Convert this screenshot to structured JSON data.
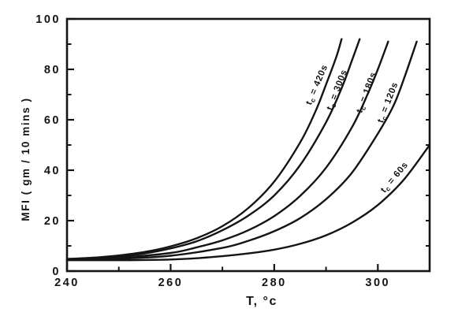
{
  "figure": {
    "background": "#ffffff",
    "ink_color": "#141414"
  },
  "chart_data": {
    "type": "line",
    "title": "",
    "xlabel": "T, °c",
    "ylabel": "MFI ( gm / 10 mins )",
    "xlim": [
      240,
      310
    ],
    "ylim": [
      0,
      100
    ],
    "grid": false,
    "legend_position": "inline rotated labels beside each curve",
    "x_ticks_major": [
      240,
      260,
      280,
      300
    ],
    "x_ticks_minor": [
      250,
      270,
      290
    ],
    "y_ticks_major": [
      0,
      20,
      40,
      60,
      80,
      100
    ],
    "y_ticks_minor": [
      10,
      30,
      50,
      70,
      90
    ],
    "right_border_ticks": [
      10,
      20,
      30,
      40,
      50,
      60,
      70,
      80,
      90
    ],
    "series": [
      {
        "name": "tc = 420s",
        "tc_seconds": 420,
        "label_parts": {
          "main": "t",
          "sub": "c",
          "rest": " = 420s"
        },
        "label_anchor": {
          "T": 288.7,
          "MFI": 73.5,
          "angle_deg": -67
        },
        "points": [
          [
            240,
            4.8
          ],
          [
            245,
            5.3
          ],
          [
            250,
            6.2
          ],
          [
            255,
            7.6
          ],
          [
            260,
            9.8
          ],
          [
            265,
            13.0
          ],
          [
            270,
            17.8
          ],
          [
            275,
            25.0
          ],
          [
            280,
            35.5
          ],
          [
            285,
            51.0
          ],
          [
            288,
            63.5
          ],
          [
            290,
            74.0
          ],
          [
            292,
            85.0
          ],
          [
            293,
            92.0
          ]
        ]
      },
      {
        "name": "tc = 300s",
        "tc_seconds": 300,
        "label_parts": {
          "main": "t",
          "sub": "c",
          "rest": " = 300s"
        },
        "label_anchor": {
          "T": 292.6,
          "MFI": 71.5,
          "angle_deg": -69
        },
        "points": [
          [
            240,
            4.7
          ],
          [
            245,
            5.1
          ],
          [
            250,
            5.9
          ],
          [
            255,
            7.0
          ],
          [
            260,
            9.0
          ],
          [
            265,
            11.8
          ],
          [
            270,
            16.2
          ],
          [
            275,
            22.0
          ],
          [
            280,
            30.0
          ],
          [
            285,
            42.0
          ],
          [
            290,
            59.0
          ],
          [
            293,
            72.5
          ],
          [
            295,
            83.5
          ],
          [
            296.5,
            92.0
          ]
        ]
      },
      {
        "name": "tc = 180s",
        "tc_seconds": 180,
        "label_parts": {
          "main": "t",
          "sub": "c",
          "rest": " = 180s"
        },
        "label_anchor": {
          "T": 298.3,
          "MFI": 70.5,
          "angle_deg": -70
        },
        "points": [
          [
            240,
            4.5
          ],
          [
            250,
            5.3
          ],
          [
            260,
            7.2
          ],
          [
            265,
            9.4
          ],
          [
            270,
            12.2
          ],
          [
            275,
            16.2
          ],
          [
            280,
            21.8
          ],
          [
            285,
            29.8
          ],
          [
            290,
            41.0
          ],
          [
            295,
            57.0
          ],
          [
            298,
            70.0
          ],
          [
            300,
            80.0
          ],
          [
            302,
            91.0
          ]
        ]
      },
      {
        "name": "tc = 120s",
        "tc_seconds": 120,
        "label_parts": {
          "main": "t",
          "sub": "c",
          "rest": " = 120s"
        },
        "label_anchor": {
          "T": 302.4,
          "MFI": 66.5,
          "angle_deg": -69
        },
        "points": [
          [
            240,
            4.4
          ],
          [
            250,
            4.9
          ],
          [
            260,
            6.1
          ],
          [
            270,
            9.2
          ],
          [
            275,
            12.0
          ],
          [
            280,
            15.8
          ],
          [
            285,
            21.0
          ],
          [
            290,
            28.5
          ],
          [
            295,
            39.0
          ],
          [
            300,
            54.5
          ],
          [
            303,
            65.5
          ],
          [
            305,
            76.0
          ],
          [
            307.5,
            91.0
          ]
        ]
      },
      {
        "name": "tc = 60s",
        "tc_seconds": 60,
        "label_parts": {
          "main": "t",
          "sub": "c",
          "rest": " = 60s"
        },
        "label_anchor": {
          "T": 303.6,
          "MFI": 36.5,
          "angle_deg": -50
        },
        "points": [
          [
            240,
            4.3
          ],
          [
            245,
            4.3
          ],
          [
            250,
            4.3
          ],
          [
            255,
            4.4
          ],
          [
            260,
            4.6
          ],
          [
            265,
            5.1
          ],
          [
            270,
            5.9
          ],
          [
            275,
            7.0
          ],
          [
            280,
            8.5
          ],
          [
            285,
            10.8
          ],
          [
            290,
            14.2
          ],
          [
            295,
            19.2
          ],
          [
            300,
            26.2
          ],
          [
            305,
            36.2
          ],
          [
            310,
            50.0
          ]
        ]
      }
    ]
  }
}
